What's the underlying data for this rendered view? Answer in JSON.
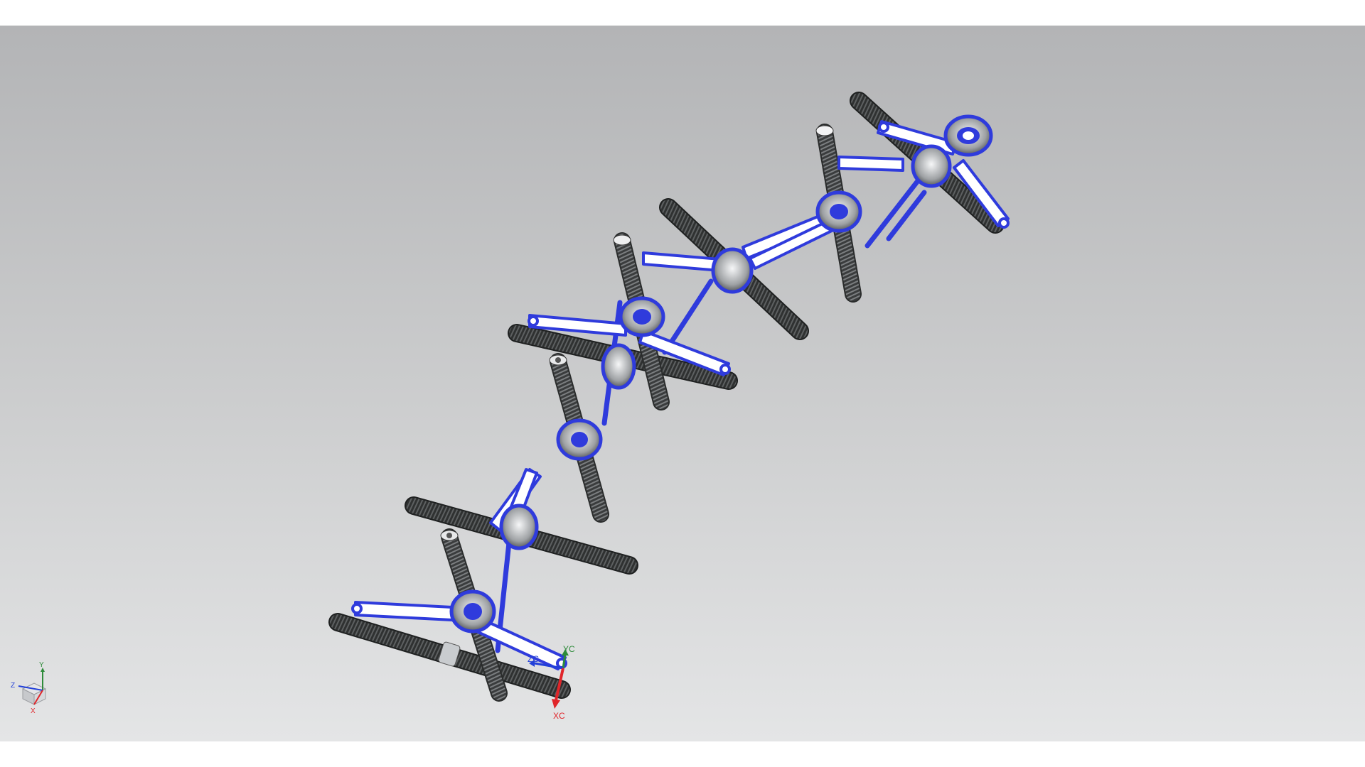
{
  "window": {
    "title": ""
  },
  "viewport": {
    "background_top": "#b3b4b6",
    "background_bottom": "#e4e5e6",
    "selection_color": "#2f3bdc",
    "rod_color": "#2e3030",
    "link_color": "#ffffff"
  },
  "work_csys": {
    "x_label": "XC",
    "y_label": "YC",
    "z_label": "ZC",
    "x_color": "#e0252a",
    "y_color": "#2e8b3a",
    "z_color": "#2240d8"
  },
  "view_triad": {
    "x_label": "X",
    "y_label": "Y",
    "z_label": "Z"
  }
}
